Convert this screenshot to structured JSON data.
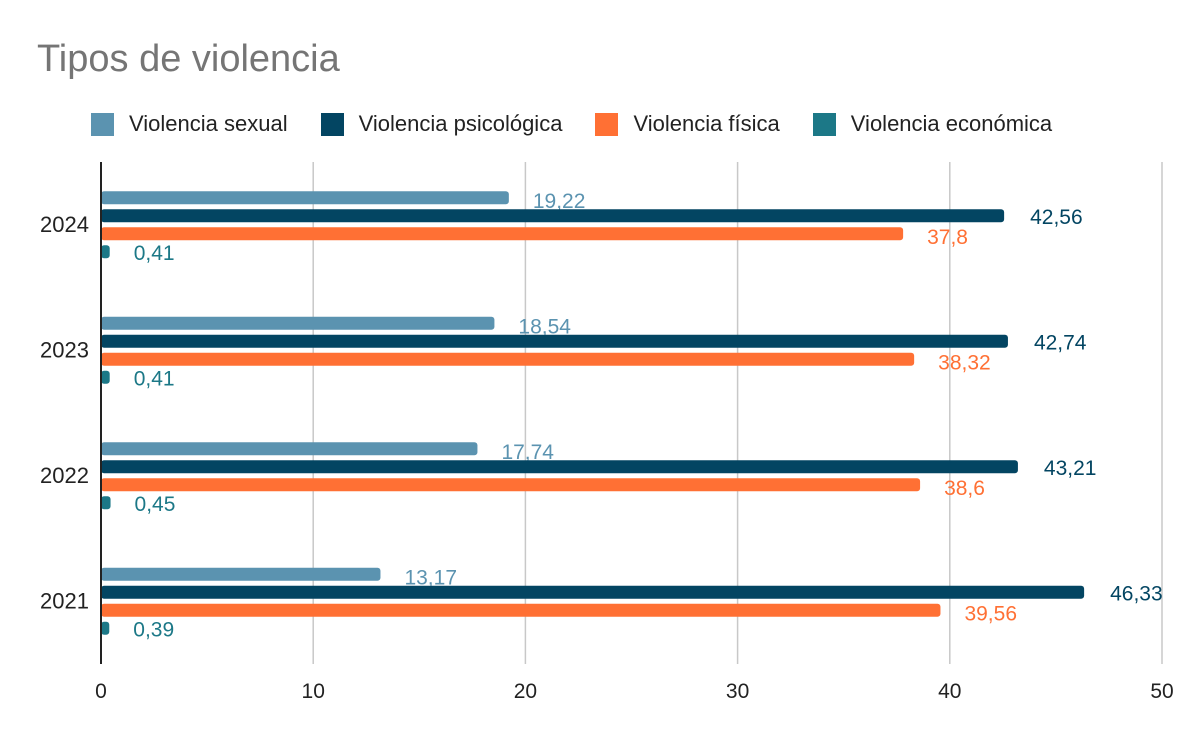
{
  "chart_data": {
    "type": "bar",
    "orientation": "horizontal",
    "title": "Tipos de violencia",
    "categories": [
      "2024",
      "2023",
      "2022",
      "2021"
    ],
    "series": [
      {
        "name": "Violencia sexual",
        "color": "#5b93b0",
        "values": [
          19.22,
          18.54,
          17.74,
          13.17
        ],
        "labels": [
          "19,22",
          "18,54",
          "17,74",
          "13,17"
        ]
      },
      {
        "name": "Violencia psicológica",
        "color": "#034562",
        "values": [
          42.56,
          42.74,
          43.21,
          46.33
        ],
        "labels": [
          "42,56",
          "42,74",
          "43,21",
          "46,33"
        ]
      },
      {
        "name": "Violencia física",
        "color": "#ff7034",
        "values": [
          37.8,
          38.32,
          38.6,
          39.56
        ],
        "labels": [
          "37,8",
          "38,32",
          "38,6",
          "39,56"
        ]
      },
      {
        "name": "Violencia económica",
        "color": "#1c7887",
        "values": [
          0.41,
          0.41,
          0.45,
          0.39
        ],
        "labels": [
          "0,41",
          "0,41",
          "0,45",
          "0,39"
        ]
      }
    ],
    "x_ticks": [
      0,
      10,
      20,
      30,
      40,
      50
    ],
    "xlim": [
      0,
      50
    ],
    "grid": true,
    "legend_position": "top"
  }
}
